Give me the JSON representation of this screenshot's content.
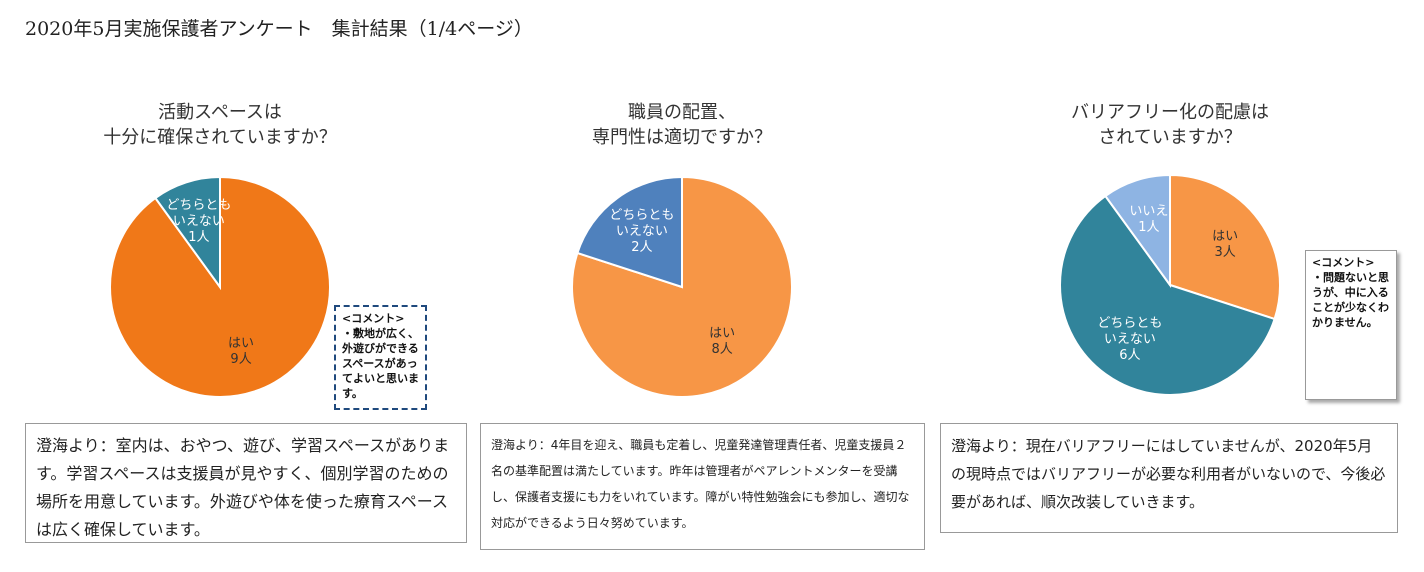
{
  "title": "2020年5月実施保護者アンケート　集計結果（1/4ページ）",
  "chart_data": [
    {
      "type": "pie",
      "title": [
        "活動スペースは",
        "十分に確保されていますか？"
      ],
      "categories": [
        "はい",
        "どちらとも\nいえない"
      ],
      "values": [
        9,
        1
      ],
      "value_labels": [
        "9人",
        "1人"
      ],
      "colors": [
        "#f07818",
        "#31849b"
      ],
      "label_colors": [
        "#333333",
        "#ffffff"
      ],
      "comment": {
        "heading": "<コメント>",
        "text": "・敷地が広く、外遊びができるスペースがあってよいと思います。"
      },
      "note": "澄海より：室内は、おやつ、遊び、学習スペースがあります。学習スペースは支援員が見やすく、個別学習のための場所を用意しています。外遊びや体を使った療育スペースは広く確保しています。"
    },
    {
      "type": "pie",
      "title": [
        "職員の配置、",
        "専門性は適切ですか？"
      ],
      "categories": [
        "はい",
        "どちらとも\nいえない"
      ],
      "values": [
        8,
        2
      ],
      "value_labels": [
        "8人",
        "2人"
      ],
      "colors": [
        "#f79646",
        "#4f81bd"
      ],
      "label_colors": [
        "#333333",
        "#ffffff"
      ],
      "note": "澄海より：4年目を迎え、職員も定着し、児童発達管理責任者、児童支援員２名の基準配置は満たしています。昨年は管理者がペアレントメンターを受講し、保護者支援にも力をいれています。障がい特性勉強会にも参加し、適切な対応ができるよう日々努めています。"
    },
    {
      "type": "pie",
      "title": [
        "バリアフリー化の配慮は",
        "されていますか？"
      ],
      "categories": [
        "はい",
        "どちらとも\nいえない",
        "いいえ"
      ],
      "values": [
        3,
        6,
        1
      ],
      "value_labels": [
        "3人",
        "6人",
        "1人"
      ],
      "colors": [
        "#f79646",
        "#31849b",
        "#8eb4e3"
      ],
      "label_colors": [
        "#333333",
        "#ffffff",
        "#ffffff"
      ],
      "comment": {
        "heading": "<コメント>",
        "text": "・問題ないと思うが、中に入ることが少なくわかりません。"
      },
      "note": "澄海より：現在バリアフリーにはしていませんが、2020年5月の現時点ではバリアフリーが必要な利用者がいないので、今後必要があれば、順次改装していきます。"
    }
  ]
}
